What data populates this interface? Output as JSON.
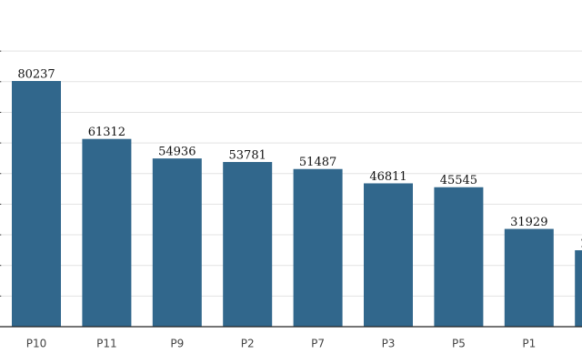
{
  "chart_data": {
    "type": "bar",
    "categories": [
      "P10",
      "P11",
      "P9",
      "P2",
      "P7",
      "P3",
      "P5",
      "P1",
      null
    ],
    "values": [
      80237,
      61312,
      54936,
      53781,
      51487,
      46811,
      45545,
      31929,
      24960
    ],
    "color": "#31678c",
    "ylim": [
      0,
      100000
    ],
    "yticks": [
      0,
      10000,
      20000,
      30000,
      40000,
      50000,
      60000,
      70000,
      80000,
      90000
    ],
    "grid": true
  }
}
